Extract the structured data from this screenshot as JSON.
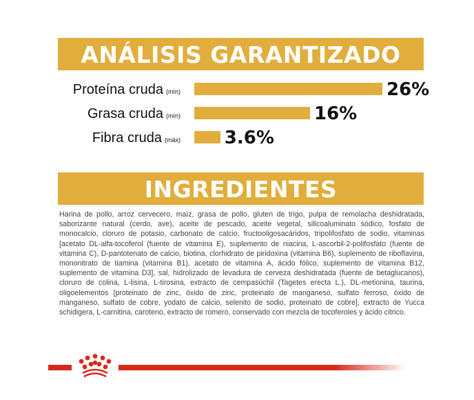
{
  "analysis": {
    "title": "ANÁLISIS GARANTIZADO",
    "bar_color": "#e1ad3c",
    "scale_max": 26,
    "items": [
      {
        "label": "Proteína cruda",
        "qualifier": "(mín)",
        "value": 26,
        "display": "26%"
      },
      {
        "label": "Grasa cruda",
        "qualifier": "(mín)",
        "value": 16,
        "display": "16%"
      },
      {
        "label": "Fibra cruda",
        "qualifier": "(máx)",
        "value": 3.6,
        "display": "3.6%"
      }
    ]
  },
  "chart_data": {
    "type": "bar",
    "orientation": "horizontal",
    "title": "ANÁLISIS GARANTIZADO",
    "categories": [
      "Proteína cruda (mín)",
      "Grasa cruda (mín)",
      "Fibra cruda (máx)"
    ],
    "values": [
      26,
      16,
      3.6
    ],
    "data_labels": [
      "26%",
      "16%",
      "3.6%"
    ],
    "unit": "%",
    "grid": false
  },
  "ingredients": {
    "title": "INGREDIENTES",
    "text": "Harina de pollo, arroz cervecero, maíz, grasa de pollo, gluten de trigo, pulpa de remolacha deshidratada, saborizante natural (cerdo, ave), aceite de pescado, aceite vegetal, silicoaluminato sódico, fosfato de monocalcio, cloruro de potasio, carbonato de calcio, fructooligosacáridos, tripolifosfato de sodio, vitaminas [acetato DL-alfa-tocoferol (fuente de vitamina E), suplemento de niacina, L-ascorbil-2-polifosfato (fuente de vitamina C), D-pantotenato de calcio, biotina, clorhidrato de piridoxina (vitamina B6), suplemento de riboflavina, mononitrato de tiamina (vitamina B1), acetato de vitamina A, ácido fólico, suplemento de vitamina B12, suplemento de vitamina D3], sal, hidrolizado de levadura de cerveza deshidratada (fuente de betaglucanos), cloruro de colina, L-lisina, L-tirosina, extracto de cempasúchil (Tagetes erecta L.), DL-metionina, taurina, oligoelementos [proteinato de zinc, óxido de zinc, proteinato de manganeso, sulfato ferroso, óxido de manganeso, sulfato de cobre, yodato de calcio, selenito de sodio, proteinato de cobre], extracto de Yucca schidigera, L-carnitina, caroteno, extracto de romero, conservado con mezcla de tocoferoles y ácido cítrico."
  },
  "footer": {
    "logo": "royal-crown-logo",
    "line_color": "#d9291c"
  }
}
